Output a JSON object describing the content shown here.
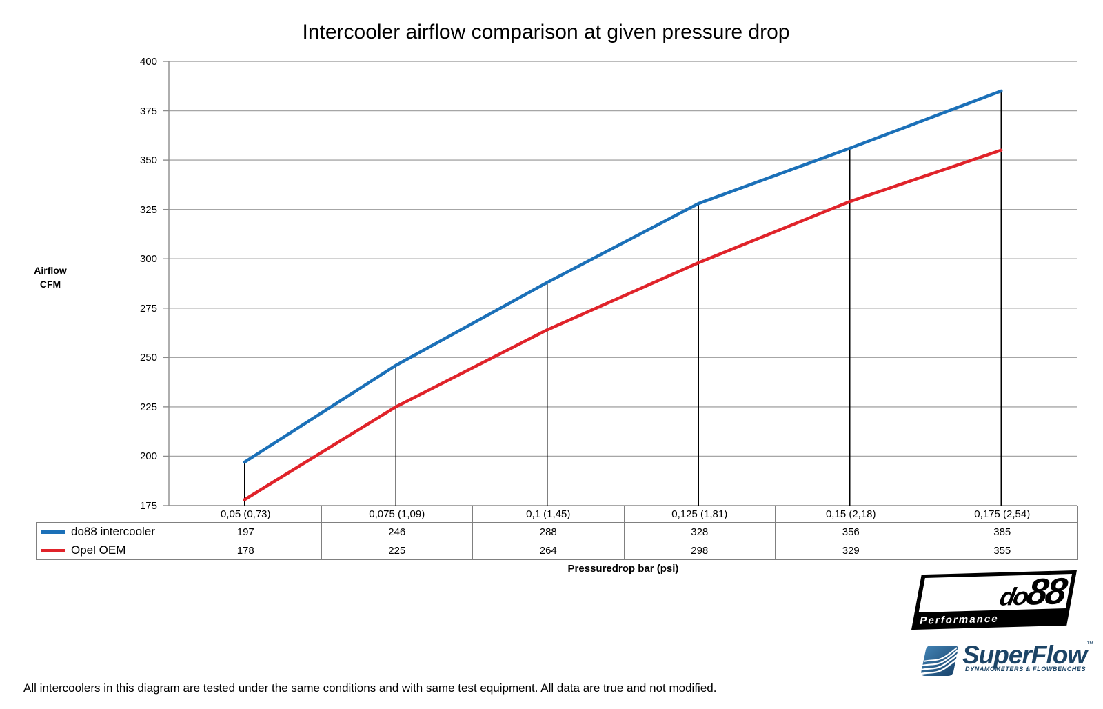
{
  "title": "Intercooler airflow comparison at given pressure drop",
  "chart_data": {
    "type": "line",
    "title": "Intercooler airflow comparison at given pressure drop",
    "categories": [
      "0,05 (0,73)",
      "0,075 (1,09)",
      "0,1 (1,45)",
      "0,125 (1,81)",
      "0,15 (2,18)",
      "0,175 (2,54)"
    ],
    "series": [
      {
        "name": "do88 intercooler",
        "color": "#1B70B8",
        "values": [
          197,
          246,
          288,
          328,
          356,
          385
        ]
      },
      {
        "name": "Opel OEM",
        "color": "#E0232A",
        "values": [
          178,
          225,
          264,
          298,
          329,
          355
        ]
      }
    ],
    "xlabel": "Pressuredrop bar (psi)",
    "ylabel": "Airflow CFM",
    "ylim": [
      175,
      400
    ],
    "ytick_step": 25,
    "grid": true,
    "droplines_to_first_series": true,
    "legend_position": "table-left"
  },
  "y_axis": {
    "label_line1": "Airflow",
    "label_line2": "CFM",
    "ticks": [
      400,
      375,
      350,
      325,
      300,
      275,
      250,
      225,
      200,
      175
    ]
  },
  "footer_note": "All intercoolers in this diagram are tested under the same conditions and with same test equipment. All data are true and not modified.",
  "logos": {
    "do88": {
      "name_prefix": "do",
      "name_suffix": "88",
      "subtext": "Performance"
    },
    "superflow": {
      "text": "SuperFlow",
      "trademark": "™",
      "subtext": "DYNAMOMETERS & FLOWBENCHES"
    }
  },
  "colors": {
    "series_blue": "#1B70B8",
    "series_red": "#E0232A",
    "gridline": "#A6A6A6",
    "axis": "#8C8C8C",
    "dropline": "#000000",
    "table_border": "#808080",
    "logo_navy": "#1C4466",
    "logo_blue_light": "#4486B8"
  }
}
